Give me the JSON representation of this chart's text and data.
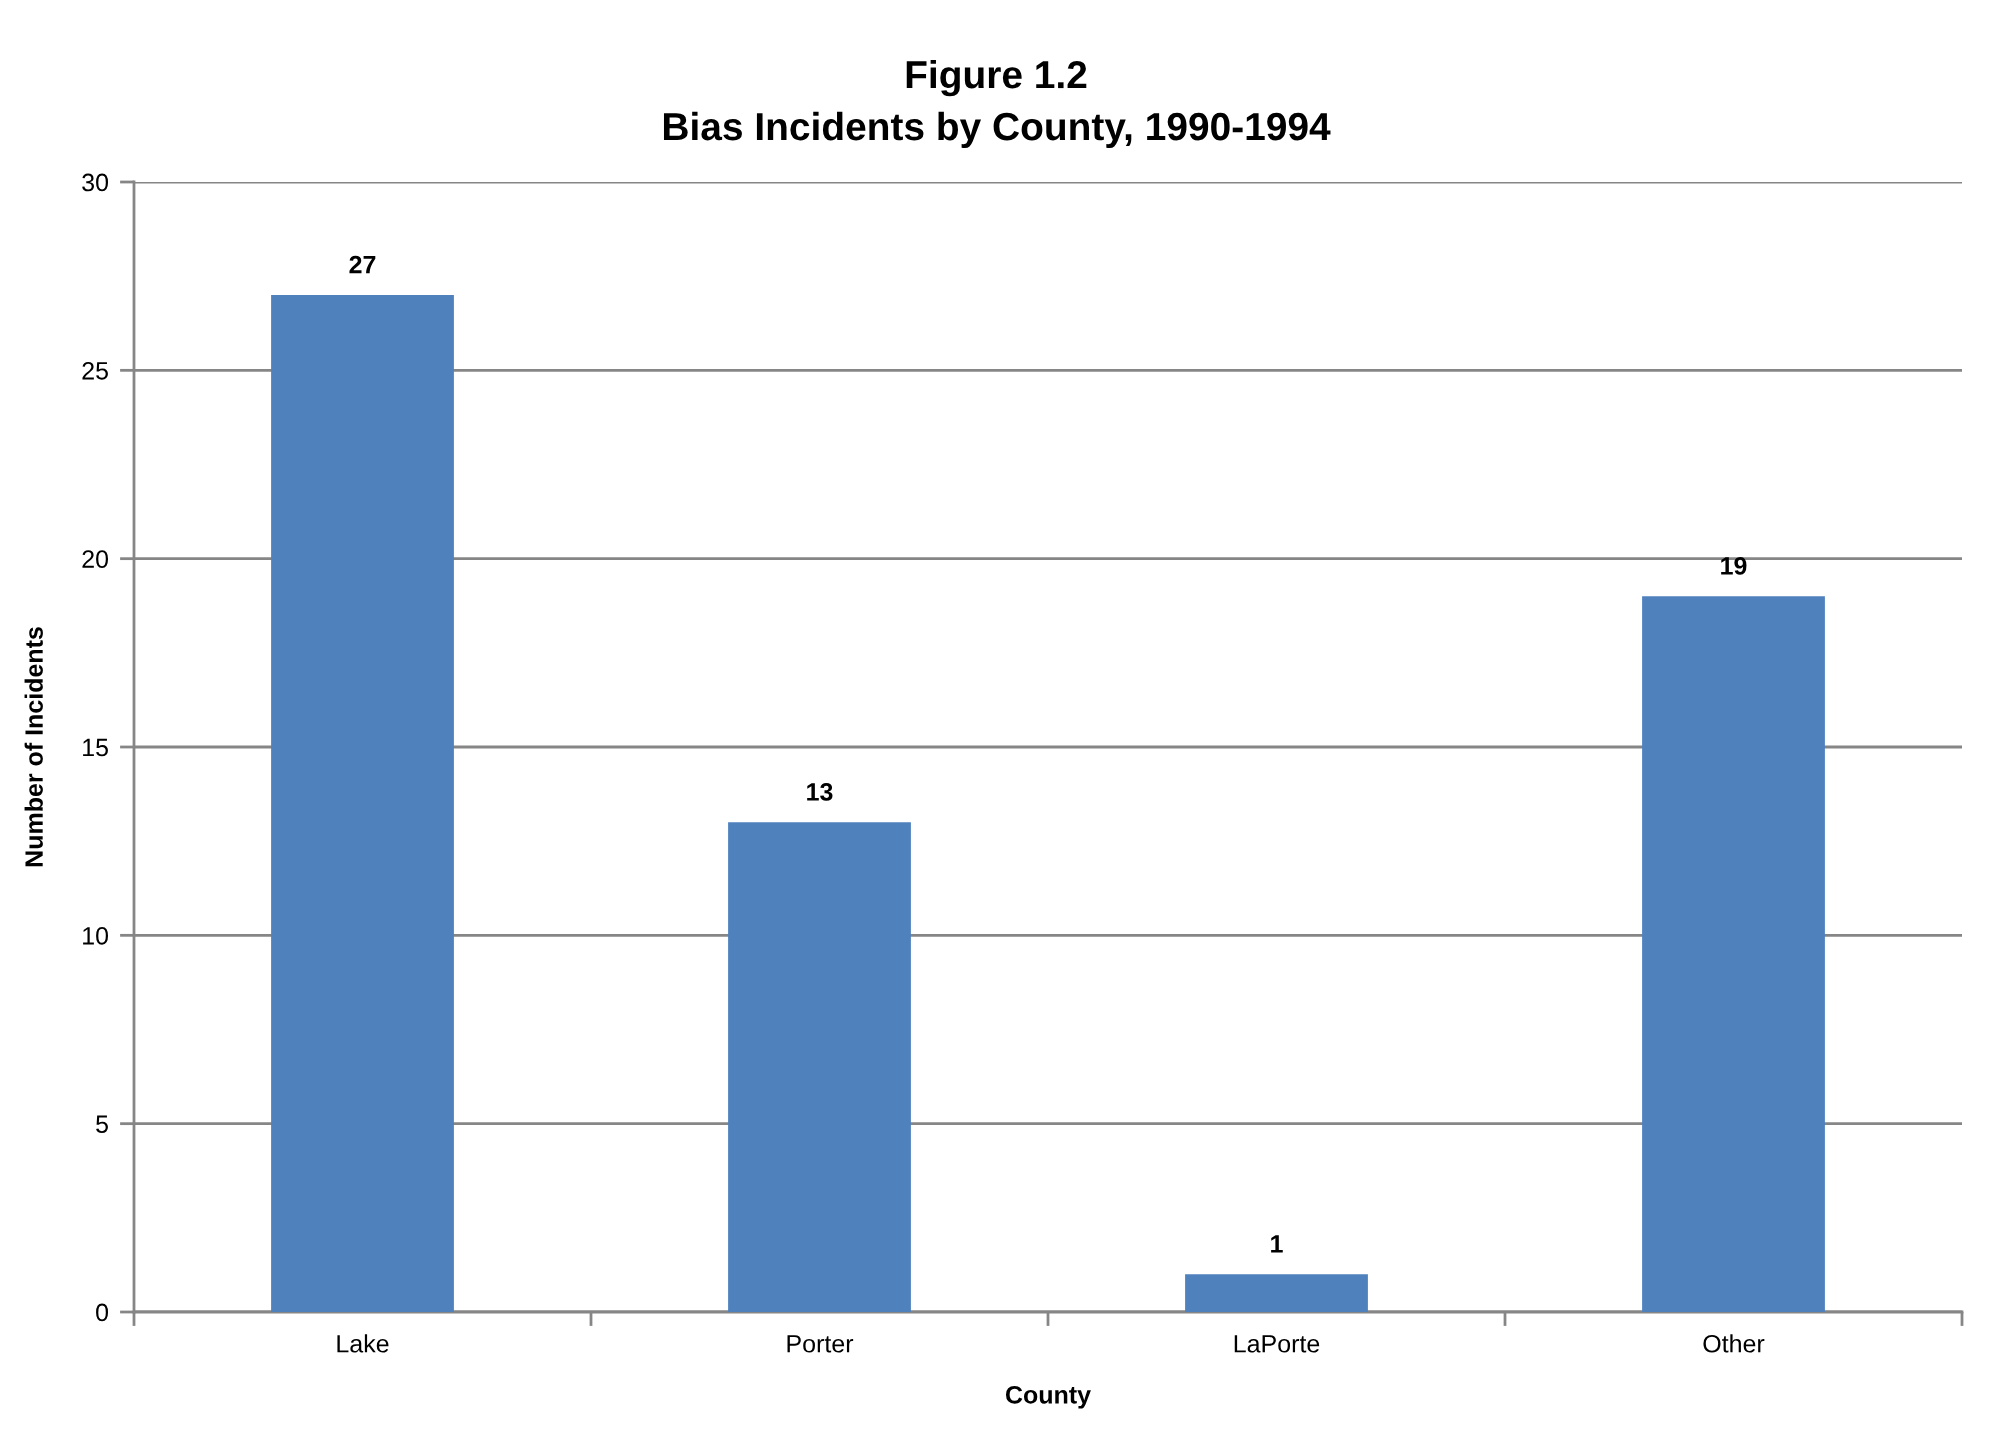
{
  "chart_data": {
    "type": "bar",
    "title": "Figure 1.2\nBias Incidents by County, 1990-1994",
    "xlabel": "County",
    "ylabel": "Number of Incidents",
    "categories": [
      "Lake",
      "Porter",
      "LaPorte",
      "Other"
    ],
    "values": [
      27,
      13,
      1,
      19
    ],
    "color": "#4f81bd",
    "ylim": [
      0,
      30
    ],
    "yticks": [
      0,
      5,
      10,
      15,
      20,
      25,
      30
    ],
    "grid": "y",
    "data_labels": true
  }
}
